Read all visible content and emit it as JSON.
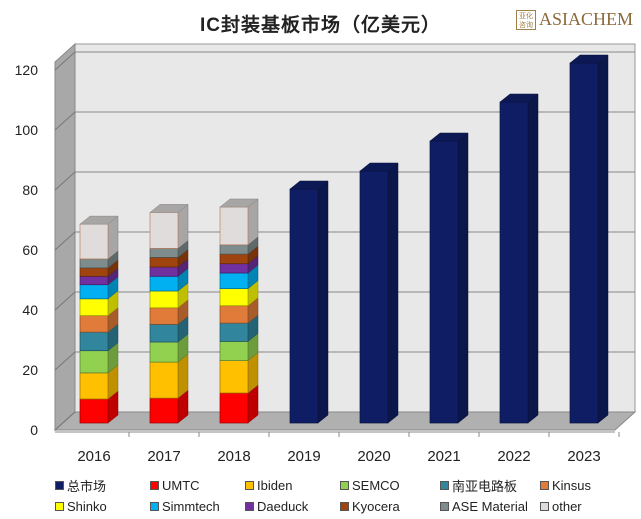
{
  "title": "IC封装基板市场（亿美元）",
  "logo": {
    "text": "ASIACHEM",
    "seal": "亚化咨询"
  },
  "chart_data": {
    "type": "bar",
    "stacked": true,
    "title": "IC封装基板市场（亿美元）",
    "categories": [
      "2016",
      "2017",
      "2018",
      "2019",
      "2020",
      "2021",
      "2022",
      "2023"
    ],
    "ylim": [
      0,
      120
    ],
    "yticks": [
      0,
      20,
      40,
      60,
      80,
      100,
      120
    ],
    "grid": true,
    "legend_position": "bottom",
    "series": [
      {
        "name": "总市场",
        "color": "#0f1e64",
        "values": [
          null,
          null,
          null,
          78,
          84,
          94,
          107,
          120
        ]
      },
      {
        "name": "UMTC",
        "color": "#ff0000",
        "values": [
          8.0,
          8.3,
          10.0,
          null,
          null,
          null,
          null,
          null
        ]
      },
      {
        "name": "Ibiden",
        "color": "#ffc000",
        "values": [
          8.7,
          12.0,
          10.8,
          null,
          null,
          null,
          null,
          null
        ]
      },
      {
        "name": "SEMCO",
        "color": "#92d050",
        "values": [
          7.4,
          6.7,
          6.4,
          null,
          null,
          null,
          null,
          null
        ]
      },
      {
        "name": "南亚电路板",
        "color": "#31859c",
        "values": [
          6.2,
          5.9,
          6.1,
          null,
          null,
          null,
          null,
          null
        ]
      },
      {
        "name": "Kinsus",
        "color": "#e07b39",
        "values": [
          5.5,
          5.5,
          5.8,
          null,
          null,
          null,
          null,
          null
        ]
      },
      {
        "name": "Shinko",
        "color": "#ffff00",
        "values": [
          5.6,
          5.6,
          5.7,
          null,
          null,
          null,
          null,
          null
        ]
      },
      {
        "name": "Simmtech",
        "color": "#00b0f0",
        "values": [
          4.7,
          4.9,
          5.2,
          null,
          null,
          null,
          null,
          null
        ]
      },
      {
        "name": "Daeduck",
        "color": "#7030a0",
        "values": [
          2.8,
          3.1,
          3.1,
          null,
          null,
          null,
          null,
          null
        ]
      },
      {
        "name": "Kyocera",
        "color": "#a0440f",
        "values": [
          2.8,
          3.2,
          3.2,
          null,
          null,
          null,
          null,
          null
        ]
      },
      {
        "name": "ASE Material",
        "color": "#7f8c8d",
        "values": [
          3.0,
          3.0,
          3.1,
          null,
          null,
          null,
          null,
          null
        ]
      },
      {
        "name": "other",
        "color": "#e0dcdc",
        "values": [
          11.6,
          12.0,
          12.6,
          null,
          null,
          null,
          null,
          null
        ]
      }
    ]
  }
}
